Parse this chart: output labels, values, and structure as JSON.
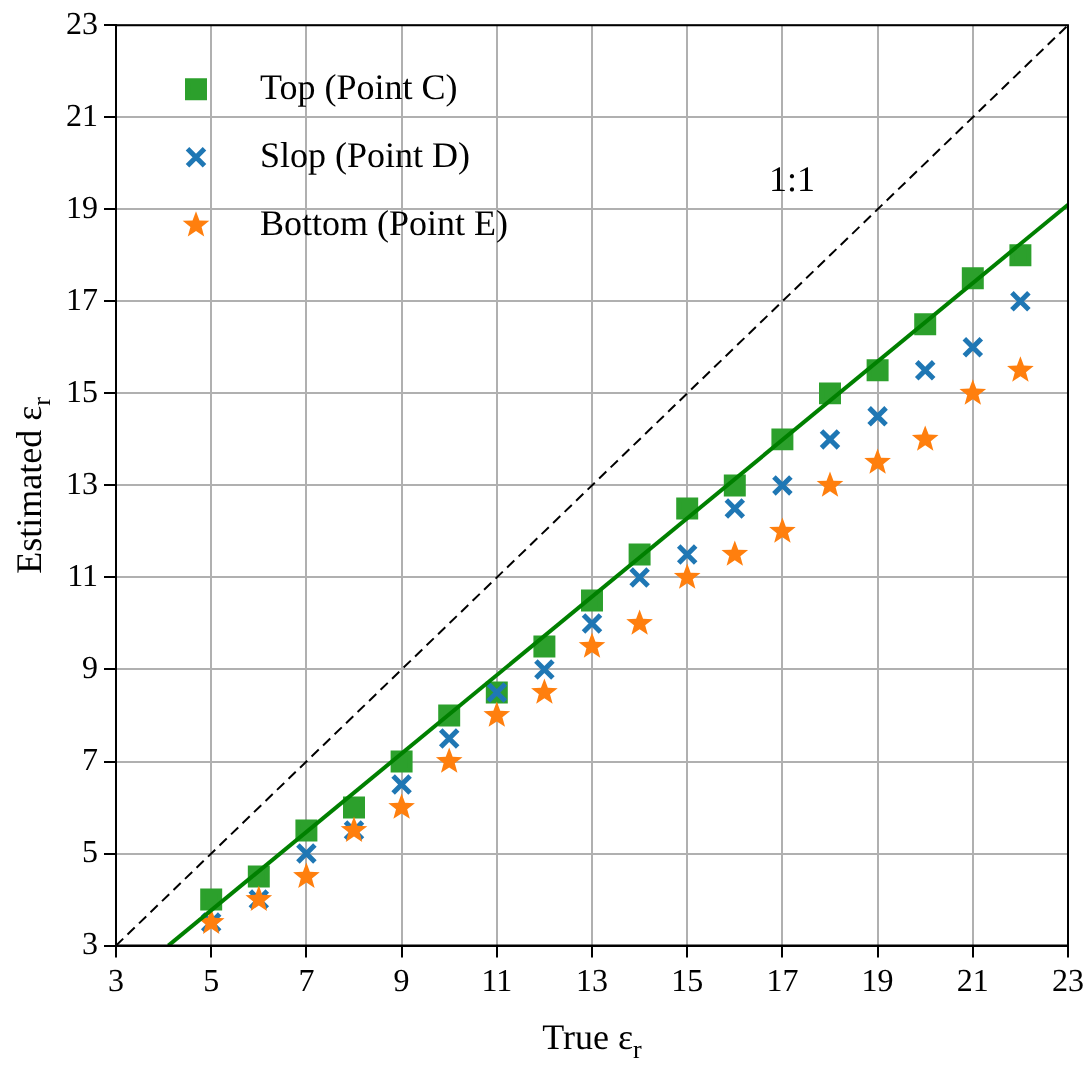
{
  "chart_data": {
    "type": "scatter",
    "xlabel": "True ε$_{r}$",
    "ylabel": "Estimated ε$_{r}$",
    "x": [
      5,
      6,
      7,
      8,
      9,
      10,
      11,
      12,
      13,
      14,
      15,
      16,
      17,
      18,
      19,
      20,
      21,
      22
    ],
    "series": [
      {
        "name": "Top (Point C)",
        "color": "#2ca02c",
        "marker": "square",
        "values": [
          4,
          4.5,
          5.5,
          6,
          7,
          8,
          8.5,
          9.5,
          10.5,
          11.5,
          12.5,
          13,
          14,
          15,
          15.5,
          16.5,
          17.5,
          18
        ]
      },
      {
        "name": "Slop (Point D)",
        "color": "#1f77b4",
        "marker": "cross",
        "values": [
          3.5,
          4,
          5,
          5.5,
          6.5,
          7.5,
          8.5,
          9,
          10,
          11,
          11.5,
          12.5,
          13,
          14,
          14.5,
          15.5,
          16,
          17
        ]
      },
      {
        "name": "Bottom (Point E)",
        "color": "#ff7f0e",
        "marker": "star",
        "values": [
          3.5,
          4,
          4.5,
          5.5,
          6,
          7,
          8,
          8.5,
          9.5,
          10,
          11,
          11.5,
          12,
          13,
          13.5,
          14,
          15,
          15.5
        ]
      },
      {
        "type": "line",
        "color": "#008000",
        "line_style": "solid",
        "x": [
          4.1,
          23
        ],
        "values": [
          3,
          19.1
        ]
      },
      {
        "type": "line",
        "color": "#000000",
        "line_style": "dashed",
        "x": [
          3,
          23
        ],
        "values": [
          3,
          23
        ]
      }
    ],
    "annotations": [
      "1:1"
    ],
    "xlim": [
      3,
      23
    ],
    "xticks": [
      3,
      5,
      7,
      9,
      11,
      13,
      15,
      17,
      19,
      21,
      23
    ],
    "ylim": [
      3,
      23
    ],
    "yticks": [
      3,
      5,
      7,
      9,
      11,
      13,
      15,
      17,
      19,
      21,
      23
    ],
    "grid": true,
    "legend": "top left"
  }
}
